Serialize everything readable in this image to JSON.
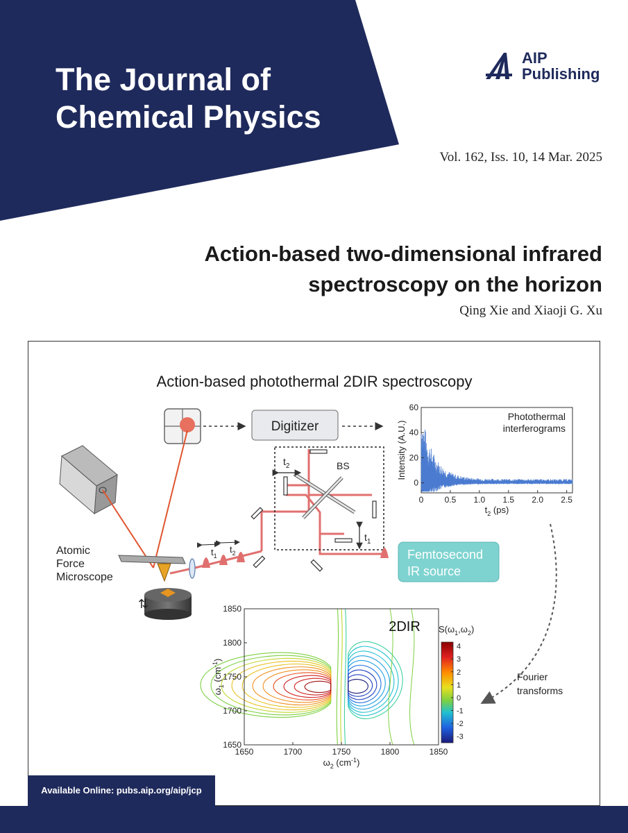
{
  "journal": {
    "title_line1": "The Journal of",
    "title_line2": "Chemical Physics",
    "publisher_line1": "AIP",
    "publisher_line2": "Publishing",
    "volume": "Vol. 162, Iss. 10, 14 Mar. 2025"
  },
  "article": {
    "title_line1": "Action-based two-dimensional infrared",
    "title_line2": "spectroscopy on the horizon",
    "authors": "Qing Xie and Xiaoji G. Xu"
  },
  "figure": {
    "heading": "Action-based photothermal 2DIR spectroscopy",
    "digitizer": "Digitizer",
    "bs_label": "BS",
    "t1": "t",
    "t1_sub": "1",
    "t2": "t",
    "t2_sub": "2",
    "afm_line1": "Atomic",
    "afm_line2": "Force",
    "afm_line3": "Microscope",
    "source_line1": "Femtosecond",
    "source_line2": "IR source",
    "fourier_line1": "Fourier",
    "fourier_line2": "transforms"
  },
  "chart_data": [
    {
      "type": "line",
      "annotation_line1": "Photothermal",
      "annotation_line2": "interferograms",
      "xlabel": "t",
      "xlabel_sub": "2",
      "xlabel_unit": " (ps)",
      "ylabel": "Intensity (A.U.)",
      "xlim": [
        0,
        2.6
      ],
      "ylim": [
        -8,
        60
      ],
      "x_ticks": [
        "0",
        "0.5",
        "1.0",
        "1.5",
        "2.0",
        "2.5"
      ],
      "y_ticks": [
        "0",
        "20",
        "40",
        "60"
      ],
      "envelope": {
        "amplitude": 55,
        "decay_ps": 0.22,
        "noise": 3
      },
      "color": "#4a7bd0"
    },
    {
      "type": "heatmap",
      "title": "2DIR",
      "xlabel": "ω",
      "xlabel_sub": "2",
      "xlabel_unit": " (cm",
      "ylabel": "ω",
      "ylabel_sub": "1",
      "ylabel_unit": " (cm",
      "unit_sup": "-1",
      "xlim": [
        1650,
        1850
      ],
      "ylim": [
        1650,
        1850
      ],
      "x_ticks": [
        "1650",
        "1700",
        "1750",
        "1800",
        "1850"
      ],
      "y_ticks": [
        "1650",
        "1700",
        "1750",
        "1800",
        "1850"
      ],
      "colorbar_label": "S(ω",
      "colorbar_ticks": [
        "4",
        "3",
        "2",
        "1",
        "0",
        "-1",
        "-2",
        "-3"
      ],
      "colorbar_range": [
        -3.5,
        4.3
      ],
      "positive_peak": {
        "w2": 1733,
        "w1": 1735
      },
      "negative_peak": {
        "w2": 1765,
        "w1": 1735
      }
    }
  ],
  "footer": {
    "availability": "Available Online: pubs.aip.org/aip/jcp"
  },
  "colors": {
    "navy": "#1f2a5c",
    "beam_red": "#e0706f",
    "laser_orange": "#e0552f",
    "source_teal": "#7ed3d0"
  }
}
